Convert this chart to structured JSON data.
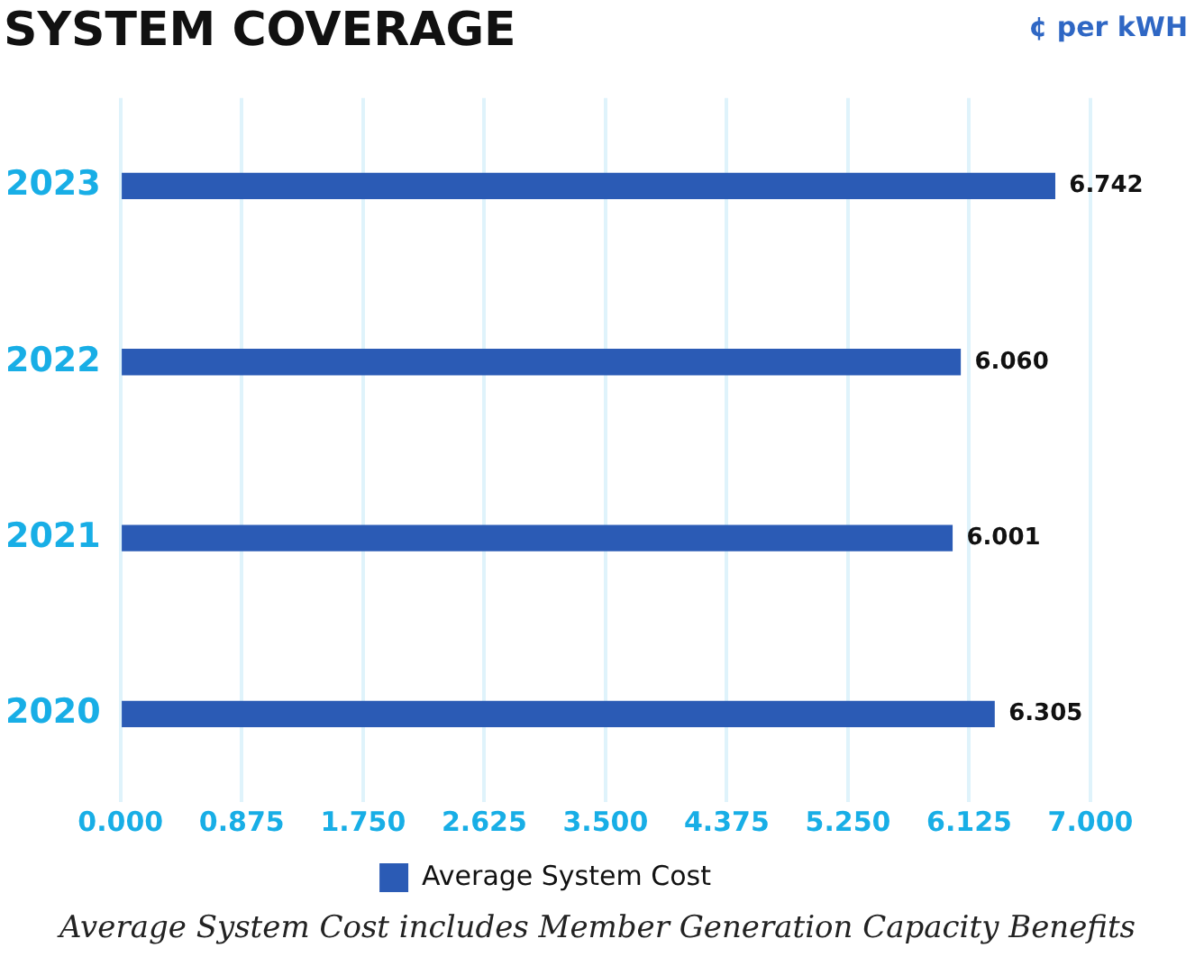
{
  "chart_data": {
    "type": "bar",
    "orientation": "horizontal",
    "title": "SYSTEM COVERAGE",
    "xlabel": "¢ per kWH",
    "categories": [
      "2023",
      "2022",
      "2021",
      "2020"
    ],
    "series": [
      {
        "name": "Average System Cost",
        "color": "#2b5bb5",
        "values": [
          6.742,
          6.06,
          6.001,
          6.305
        ],
        "value_labels": [
          "6.742",
          "6.060",
          "6.001",
          "6.305"
        ]
      }
    ],
    "xlim": [
      0,
      7
    ],
    "xticks": [
      {
        "value": 0,
        "label": "0.000"
      },
      {
        "value": 0.875,
        "label": "0.875"
      },
      {
        "value": 1.75,
        "label": "1.750"
      },
      {
        "value": 2.625,
        "label": "2.625"
      },
      {
        "value": 3.5,
        "label": "3.500"
      },
      {
        "value": 4.375,
        "label": "4.375"
      },
      {
        "value": 5.25,
        "label": "5.250"
      },
      {
        "value": 6.125,
        "label": "6.125"
      },
      {
        "value": 7,
        "label": "7.000"
      }
    ],
    "grid": "x",
    "legend": "bottom",
    "annotations": [
      "Average System Cost includes Member Generation Capacity Benefits"
    ]
  }
}
